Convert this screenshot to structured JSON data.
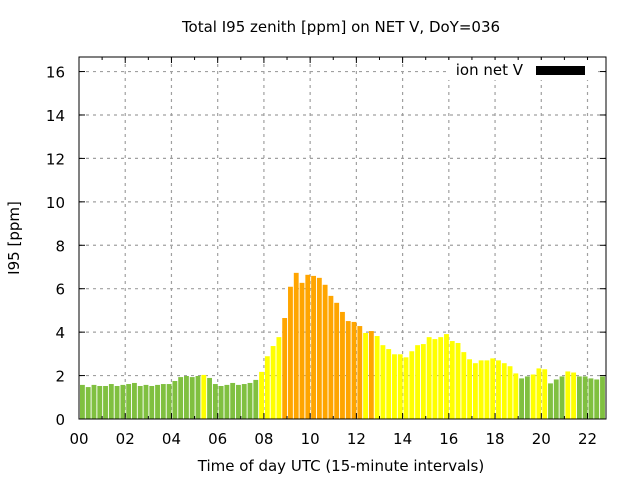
{
  "chart_data": {
    "type": "bar",
    "title": "Total I95 zenith [ppm] on NET V, DoY=036",
    "xlabel": "Time of day UTC (15-minute intervals)",
    "ylabel": "I95 [ppm]",
    "xlim": [
      0,
      22.8
    ],
    "ylim": [
      0,
      16.67
    ],
    "interval_hours": 0.25,
    "grid": true,
    "legend": {
      "label": "ion net V",
      "position": "top-right",
      "swatch_color": "#000000"
    },
    "x_ticks": [
      "00",
      "02",
      "04",
      "06",
      "08",
      "10",
      "12",
      "14",
      "16",
      "18",
      "20",
      "22"
    ],
    "x_tick_values": [
      0,
      2,
      4,
      6,
      8,
      10,
      12,
      14,
      16,
      18,
      20,
      22
    ],
    "y_ticks": [
      "0",
      "2",
      "4",
      "6",
      "8",
      "10",
      "12",
      "14",
      "16"
    ],
    "y_tick_values": [
      0,
      2,
      4,
      6,
      8,
      10,
      12,
      14,
      16
    ],
    "colors": {
      "green": "#80c040",
      "yellow": "#ffff00",
      "orange": "#ffa500",
      "grid": "#a0a0a0",
      "axis": "#000000"
    },
    "values": [
      1.57,
      1.47,
      1.57,
      1.52,
      1.52,
      1.61,
      1.52,
      1.57,
      1.61,
      1.66,
      1.52,
      1.57,
      1.52,
      1.57,
      1.61,
      1.61,
      1.75,
      1.93,
      1.98,
      1.93,
      1.98,
      2.03,
      1.89,
      1.61,
      1.52,
      1.57,
      1.66,
      1.57,
      1.61,
      1.66,
      1.8,
      2.17,
      2.89,
      3.36,
      3.77,
      4.65,
      6.09,
      6.73,
      6.27,
      6.64,
      6.59,
      6.5,
      6.18,
      5.67,
      5.35,
      4.93,
      4.51,
      4.47,
      4.28,
      3.96,
      4.05,
      3.82,
      3.4,
      3.22,
      2.98,
      2.98,
      2.84,
      3.12,
      3.4,
      3.45,
      3.77,
      3.68,
      3.77,
      3.91,
      3.59,
      3.5,
      3.08,
      2.75,
      2.57,
      2.7,
      2.7,
      2.79,
      2.7,
      2.57,
      2.43,
      2.1,
      1.87,
      1.96,
      2.05,
      2.33,
      2.29,
      1.64,
      1.82,
      1.96,
      2.19,
      2.14,
      1.96,
      1.96,
      1.87,
      1.82,
      1.96,
      2.05
    ],
    "bar_colors": [
      "green",
      "green",
      "green",
      "green",
      "green",
      "green",
      "green",
      "green",
      "green",
      "green",
      "green",
      "green",
      "green",
      "green",
      "green",
      "green",
      "green",
      "green",
      "green",
      "green",
      "green",
      "yellow",
      "green",
      "green",
      "green",
      "green",
      "green",
      "green",
      "green",
      "green",
      "green",
      "yellow",
      "yellow",
      "yellow",
      "yellow",
      "orange",
      "orange",
      "orange",
      "orange",
      "orange",
      "orange",
      "orange",
      "orange",
      "orange",
      "orange",
      "orange",
      "orange",
      "orange",
      "orange",
      "yellow",
      "orange",
      "yellow",
      "yellow",
      "yellow",
      "yellow",
      "yellow",
      "yellow",
      "yellow",
      "yellow",
      "yellow",
      "yellow",
      "yellow",
      "yellow",
      "yellow",
      "yellow",
      "yellow",
      "yellow",
      "yellow",
      "yellow",
      "yellow",
      "yellow",
      "yellow",
      "yellow",
      "yellow",
      "yellow",
      "yellow",
      "green",
      "green",
      "yellow",
      "yellow",
      "yellow",
      "green",
      "green",
      "green",
      "yellow",
      "yellow",
      "green",
      "green",
      "green",
      "green",
      "green",
      "yellow"
    ]
  }
}
